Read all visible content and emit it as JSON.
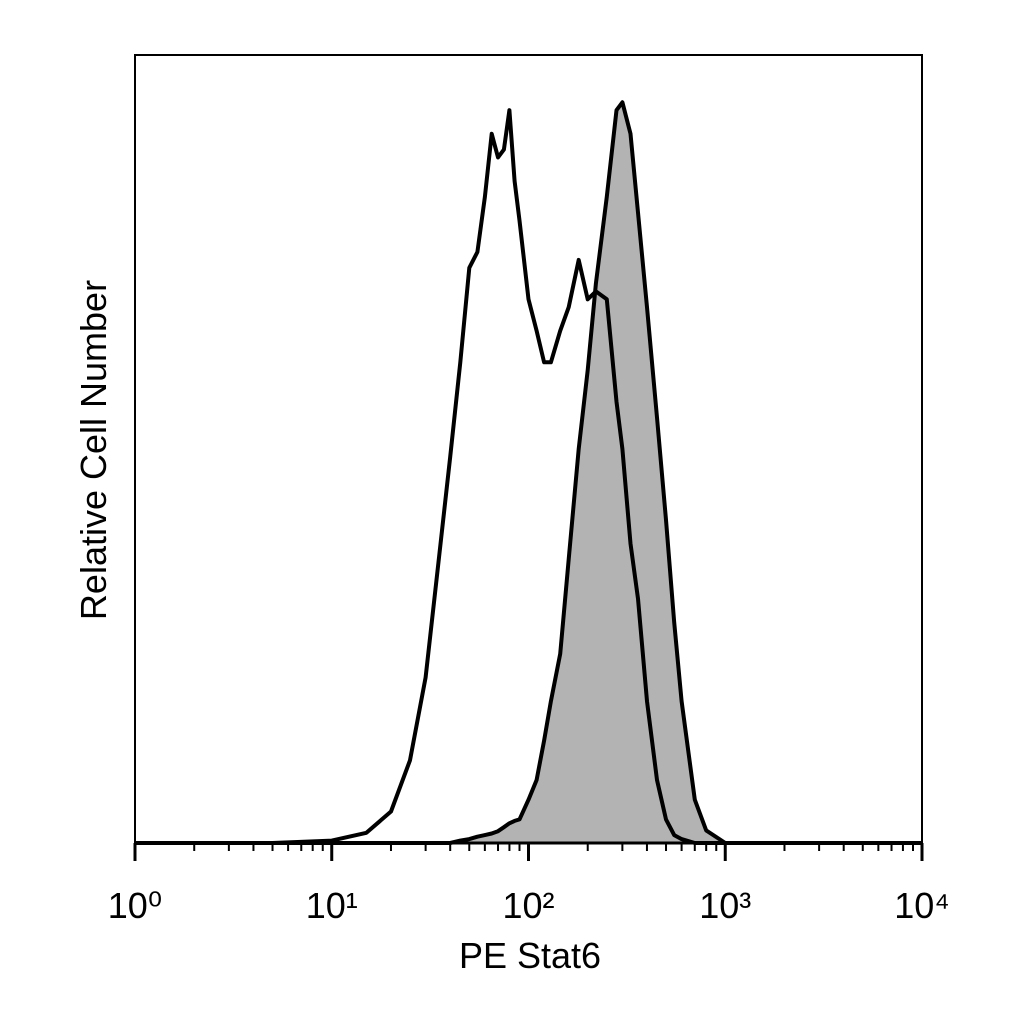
{
  "chart_data": {
    "type": "histogram-overlay",
    "xlabel": "PE Stat6",
    "ylabel": "Relative Cell Number",
    "x": [
      1,
      5,
      10,
      15,
      20,
      25,
      30,
      35,
      40,
      45,
      50,
      55,
      60,
      65,
      70,
      75,
      80,
      85,
      90,
      100,
      110,
      120,
      130,
      145,
      160,
      180,
      200,
      220,
      250,
      280,
      300,
      330,
      360,
      400,
      450,
      500,
      550,
      600,
      700,
      800,
      1000,
      10000
    ],
    "series": [
      {
        "color": "#000000",
        "fill": "#b3b3b3",
        "values": [
          0,
          0,
          0,
          0,
          0,
          0,
          0,
          0,
          0,
          0.3,
          0.5,
          0.8,
          1,
          1.2,
          1.5,
          2,
          2.5,
          2.8,
          3,
          5.5,
          8,
          13,
          18,
          24,
          36,
          50,
          60,
          71,
          82,
          93,
          94,
          90,
          80,
          68,
          54,
          41,
          28,
          18,
          5.5,
          1.6,
          0,
          0
        ]
      },
      {
        "color": "#000000",
        "values": [
          0,
          0,
          0.3,
          1.3,
          4,
          10.5,
          21,
          36,
          49,
          61,
          73,
          75,
          82,
          90,
          87,
          88,
          93,
          84,
          79,
          69,
          65,
          61,
          61,
          65,
          68,
          74,
          69,
          70,
          69,
          56,
          50,
          38,
          31,
          18,
          8,
          3,
          1,
          0.5,
          0,
          0,
          0,
          0
        ]
      }
    ],
    "xscale": "log",
    "xlim": [
      1,
      10000
    ],
    "xticks": [
      {
        "value": 1,
        "label": "10⁰"
      },
      {
        "value": 10,
        "label": "10¹"
      },
      {
        "value": 100,
        "label": "10²"
      },
      {
        "value": 1000,
        "label": "10³"
      },
      {
        "value": 10000,
        "label": "10⁴"
      }
    ],
    "ylim": [
      0,
      100
    ]
  }
}
